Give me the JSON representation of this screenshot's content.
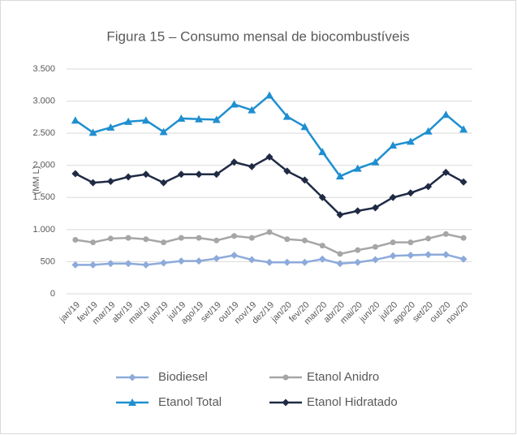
{
  "chart_data": {
    "type": "line",
    "title": "Figura 15 – Consumo mensal de biocombustíveis",
    "y_label": "(MM L)",
    "categories": [
      "jan/19",
      "fev/19",
      "mar/19",
      "abr/19",
      "mai/19",
      "jun/19",
      "jul/19",
      "ago/19",
      "set/19",
      "out/19",
      "nov/19",
      "dez/19",
      "jan/20",
      "fev/20",
      "mar/20",
      "abr/20",
      "mai/20",
      "jun/20",
      "jul/20",
      "ago/20",
      "set/20",
      "out/20",
      "nov/20"
    ],
    "series": [
      {
        "name": "Biodiesel",
        "color": "#8eaadb",
        "marker": "diamond",
        "values": [
          450,
          450,
          470,
          470,
          450,
          480,
          510,
          510,
          550,
          600,
          530,
          490,
          490,
          490,
          540,
          470,
          490,
          530,
          590,
          600,
          610,
          610,
          540
        ]
      },
      {
        "name": "Etanol Anidro",
        "color": "#a6a6a6",
        "marker": "circle",
        "values": [
          840,
          800,
          860,
          870,
          850,
          800,
          870,
          870,
          830,
          900,
          870,
          960,
          850,
          830,
          750,
          620,
          680,
          730,
          800,
          800,
          860,
          930,
          870
        ]
      },
      {
        "name": "Etanol Total",
        "color": "#1f8fd0",
        "marker": "triangle",
        "values": [
          2700,
          2510,
          2590,
          2680,
          2700,
          2520,
          2730,
          2720,
          2710,
          2950,
          2860,
          3090,
          2760,
          2600,
          2210,
          1830,
          1950,
          2050,
          2310,
          2370,
          2530,
          2790,
          2560
        ]
      },
      {
        "name": "Etanol Hidratado",
        "color": "#1f2a44",
        "marker": "diamond",
        "values": [
          1870,
          1730,
          1750,
          1820,
          1860,
          1730,
          1860,
          1860,
          1860,
          2050,
          1980,
          2130,
          1910,
          1770,
          1500,
          1230,
          1290,
          1340,
          1500,
          1570,
          1670,
          1890,
          1740
        ]
      }
    ],
    "ylim": [
      0,
      3500
    ],
    "yticks": [
      0,
      500,
      {
        "value": 1000,
        "label": "1.000"
      },
      {
        "value": 1500,
        "label": "1.500"
      },
      {
        "value": 2000,
        "label": "2.000"
      },
      {
        "value": 2500,
        "label": "2.500"
      },
      {
        "value": 3000,
        "label": "3.000"
      },
      {
        "value": 3500,
        "label": "3.500"
      }
    ],
    "grid": true,
    "legend": "bottom"
  }
}
